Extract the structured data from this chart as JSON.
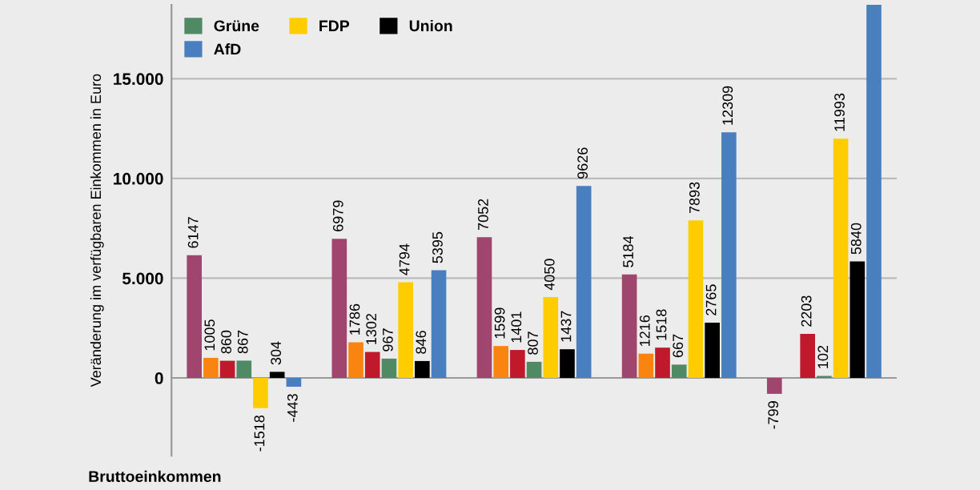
{
  "chart_data": {
    "type": "bar",
    "ylabel": "Veränderung im verfügbaren Einkommen in Euro",
    "annotations": [
      "Bruttoeinkommen"
    ],
    "categories": [
      null,
      null,
      null,
      null,
      null
    ],
    "series": [
      {
        "color": "#a0466e",
        "values": [
          6147,
          6979,
          7052,
          5184,
          -799
        ],
        "value_labels": [
          "6147",
          "6979",
          "7052",
          "5184",
          "-799"
        ]
      },
      {
        "color": "#f98410",
        "values": [
          1005,
          1786,
          1599,
          1216,
          null
        ],
        "value_labels": [
          "1005",
          "1786",
          "1599",
          "1216",
          null
        ]
      },
      {
        "color": "#c0192b",
        "values": [
          860,
          1302,
          1401,
          1518,
          2203
        ],
        "value_labels": [
          "860",
          "1302",
          "1401",
          "1518",
          "2203"
        ]
      },
      {
        "name": "Grüne",
        "color": "#4f8a64",
        "values": [
          867,
          967,
          807,
          667,
          102
        ],
        "value_labels": [
          "867",
          "967",
          "807",
          "667",
          "102"
        ]
      },
      {
        "name": "FDP",
        "color": "#ffcc00",
        "values": [
          -1518,
          4794,
          4050,
          7893,
          11993
        ],
        "value_labels": [
          "-1518",
          "4794",
          "4050",
          "7893",
          "11993"
        ]
      },
      {
        "name": "Union",
        "color": "#000000",
        "values": [
          304,
          846,
          1437,
          2765,
          5840
        ],
        "value_labels": [
          "304",
          "846",
          "1437",
          "2765",
          "5840"
        ]
      },
      {
        "name": "AfD",
        "color": "#4a7fbf",
        "values": [
          -443,
          5395,
          9626,
          12309,
          18700
        ],
        "value_labels": [
          "-443",
          "5395",
          "9626",
          "12309",
          null
        ]
      }
    ],
    "ylim": [
      -3900,
      18700
    ],
    "yticks": [
      {
        "value": 0,
        "label": "0"
      },
      {
        "value": 5000,
        "label": "5.000"
      },
      {
        "value": 10000,
        "label": "10.000"
      },
      {
        "value": 15000,
        "label": "15.000"
      }
    ],
    "grid": "y",
    "legend": "top left"
  }
}
